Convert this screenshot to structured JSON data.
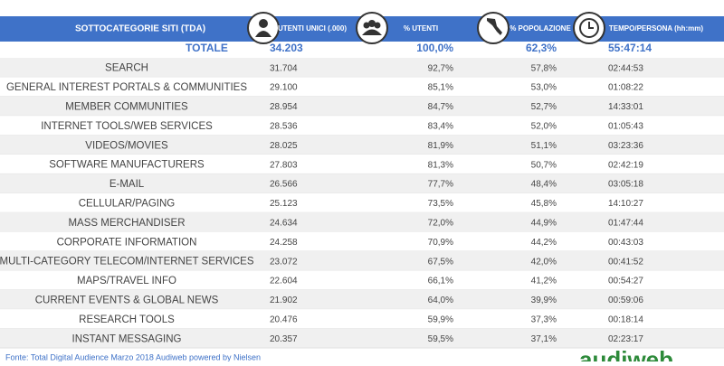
{
  "table": {
    "header": [
      "SOTTOCATEGORIE SITI  (TDA)",
      "UTENTI UNICI (.000)",
      "% UTENTI",
      "% POPOLAZIONE",
      "TEMPO/PERSONA (hh:mm)"
    ],
    "total": [
      "TOTALE",
      "34.203",
      "100,0%",
      "62,3%",
      "55:47:14"
    ],
    "rows": [
      [
        "SEARCH",
        "31.704",
        "92,7%",
        "57,8%",
        "02:44:53"
      ],
      [
        "GENERAL INTEREST PORTALS & COMMUNITIES",
        "29.100",
        "85,1%",
        "53,0%",
        "01:08:22"
      ],
      [
        "MEMBER COMMUNITIES",
        "28.954",
        "84,7%",
        "52,7%",
        "14:33:01"
      ],
      [
        "INTERNET TOOLS/WEB SERVICES",
        "28.536",
        "83,4%",
        "52,0%",
        "01:05:43"
      ],
      [
        "VIDEOS/MOVIES",
        "28.025",
        "81,9%",
        "51,1%",
        "03:23:36"
      ],
      [
        "SOFTWARE MANUFACTURERS",
        "27.803",
        "81,3%",
        "50,7%",
        "02:42:19"
      ],
      [
        "E-MAIL",
        "26.566",
        "77,7%",
        "48,4%",
        "03:05:18"
      ],
      [
        "CELLULAR/PAGING",
        "25.123",
        "73,5%",
        "45,8%",
        "14:10:27"
      ],
      [
        "MASS MERCHANDISER",
        "24.634",
        "72,0%",
        "44,9%",
        "01:47:44"
      ],
      [
        "CORPORATE INFORMATION",
        "24.258",
        "70,9%",
        "44,2%",
        "00:43:03"
      ],
      [
        "MULTI-CATEGORY TELECOM/INTERNET SERVICES",
        "23.072",
        "67,5%",
        "42,0%",
        "00:41:52"
      ],
      [
        "MAPS/TRAVEL INFO",
        "22.604",
        "66,1%",
        "41,2%",
        "00:54:27"
      ],
      [
        "CURRENT EVENTS & GLOBAL NEWS",
        "21.902",
        "64,0%",
        "39,9%",
        "00:59:06"
      ],
      [
        "RESEARCH TOOLS",
        "20.476",
        "59,9%",
        "37,3%",
        "00:18:14"
      ],
      [
        "INSTANT MESSAGING",
        "20.357",
        "59,5%",
        "37,1%",
        "02:23:17"
      ]
    ]
  },
  "footer": {
    "source": "Fonte: Total Digital Audience Marzo 2018 Audiweb powered by Nielsen",
    "logo": "audiweb"
  }
}
